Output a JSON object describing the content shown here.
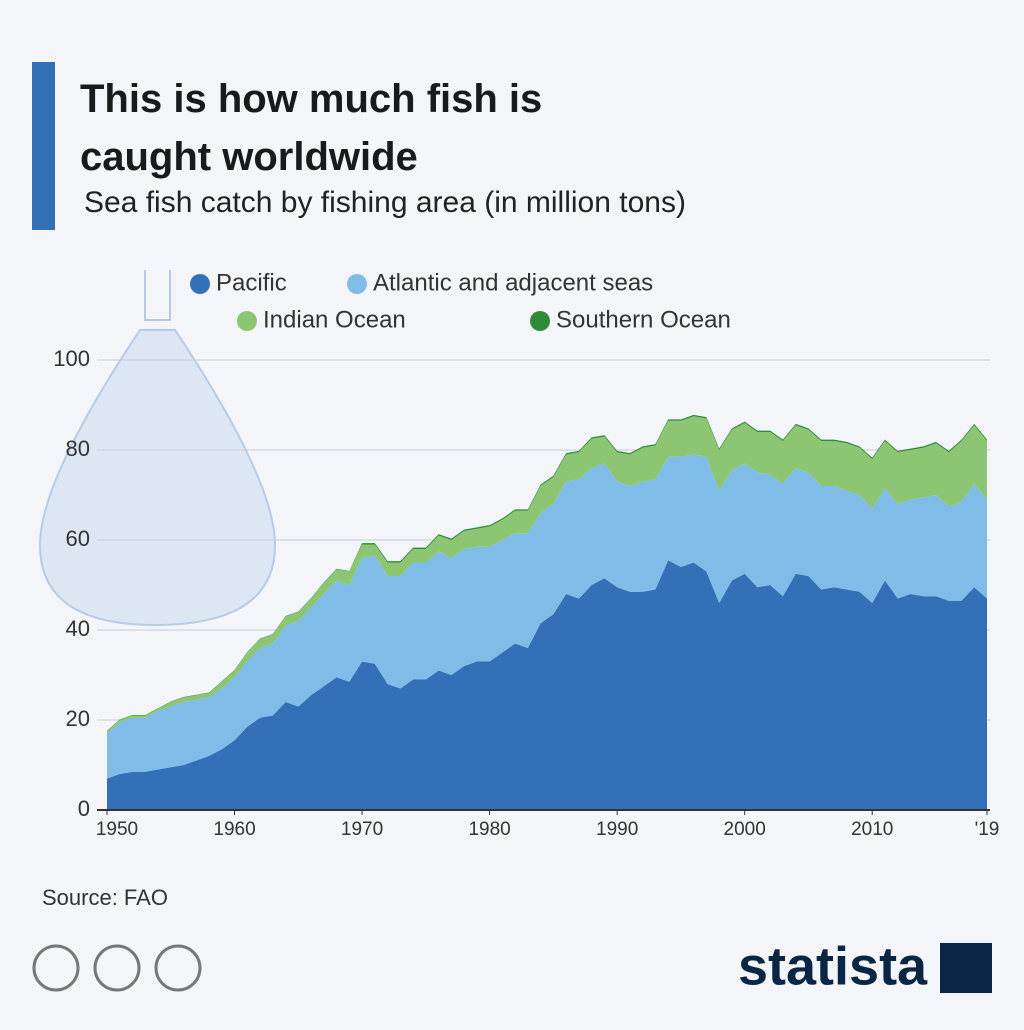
{
  "chart_data": {
    "type": "stacked_area",
    "title": "This is how much fish is caught worldwide",
    "subtitle": "Sea fish catch by fishing area (in million tons)",
    "source": "Source: FAO",
    "brand": "statista",
    "x": [
      1950,
      1951,
      1952,
      1953,
      1954,
      1955,
      1956,
      1957,
      1958,
      1959,
      1960,
      1961,
      1962,
      1963,
      1964,
      1965,
      1966,
      1967,
      1968,
      1969,
      1970,
      1971,
      1972,
      1973,
      1974,
      1975,
      1976,
      1977,
      1978,
      1979,
      1980,
      1981,
      1982,
      1983,
      1984,
      1985,
      1986,
      1987,
      1988,
      1989,
      1990,
      1991,
      1992,
      1993,
      1994,
      1995,
      1996,
      1997,
      1998,
      1999,
      2000,
      2001,
      2002,
      2003,
      2004,
      2005,
      2006,
      2007,
      2008,
      2009,
      2010,
      2011,
      2012,
      2013,
      2014,
      2015,
      2016,
      2017,
      2018,
      2019
    ],
    "series": [
      {
        "name": "Pacific",
        "color": "#3470b8",
        "values": [
          7,
          8,
          8.5,
          8.5,
          9,
          9.5,
          10,
          11,
          12,
          13.5,
          15.5,
          18.5,
          20.5,
          21,
          24,
          23,
          25.5,
          27.5,
          29.5,
          28.5,
          33,
          32.5,
          28,
          27,
          29,
          29,
          31,
          30,
          32,
          33,
          33,
          35,
          37,
          36,
          41.5,
          43.5,
          48,
          47,
          50,
          51.5,
          49.5,
          48.5,
          48.5,
          49,
          55.5,
          54,
          55,
          53,
          46,
          51,
          52.5,
          49.5,
          50,
          47.5,
          52.5,
          52,
          49,
          49.5,
          49,
          48.5,
          46,
          51,
          47,
          48,
          47.5,
          47.5,
          46.5,
          46.5,
          49.5,
          47
        ]
      },
      {
        "name": "Atlantic and adjacent seas",
        "color": "#80bce8",
        "values": [
          10,
          11.5,
          12,
          12,
          13,
          13.5,
          14,
          13.5,
          13,
          13.5,
          14,
          14.5,
          15.5,
          16,
          17,
          19,
          19.5,
          20.5,
          21.5,
          21.5,
          23,
          24,
          24,
          25,
          26,
          26,
          26.5,
          26,
          26,
          25.5,
          25.5,
          25,
          24.5,
          25.5,
          24.5,
          24.5,
          25,
          26.5,
          26,
          25.5,
          23.5,
          23.5,
          24.5,
          24.5,
          23,
          24.5,
          24,
          25.5,
          25,
          24.5,
          24.5,
          25.5,
          24.5,
          25,
          23.5,
          23,
          23,
          22.5,
          22,
          21.5,
          21,
          20.5,
          21,
          21,
          22,
          22.5,
          21,
          22,
          23,
          22
        ]
      },
      {
        "name": "Indian Ocean",
        "color": "#8cc672",
        "values": [
          0.5,
          0.5,
          0.5,
          0.5,
          0.5,
          1,
          1,
          1,
          1,
          1.5,
          1.5,
          2,
          2,
          2,
          2,
          2,
          2,
          2.5,
          2.5,
          3,
          3,
          2.5,
          3,
          3,
          3,
          3,
          3.5,
          4,
          4,
          4,
          4.5,
          4.5,
          5,
          5,
          6,
          6,
          6,
          6,
          6.5,
          6,
          6.5,
          7,
          7.5,
          7.5,
          8,
          8,
          8.5,
          8.5,
          9,
          9,
          9,
          9,
          9.5,
          9.5,
          9.5,
          9.5,
          10,
          10,
          10.5,
          10.5,
          11,
          10.5,
          11.5,
          11,
          11,
          11.5,
          12,
          13.5,
          13,
          13
        ]
      },
      {
        "name": "Southern Ocean",
        "color": "#2e8b3a",
        "values": [
          0.1,
          0.1,
          0.1,
          0.1,
          0.1,
          0.1,
          0.1,
          0.1,
          0.1,
          0.1,
          0.1,
          0.1,
          0.1,
          0.1,
          0.1,
          0.1,
          0.1,
          0.1,
          0.1,
          0.1,
          0.3,
          0.3,
          0.3,
          0.3,
          0.3,
          0.3,
          0.3,
          0.3,
          0.3,
          0.3,
          0.3,
          0.3,
          0.3,
          0.3,
          0.3,
          0.3,
          0.3,
          0.3,
          0.3,
          0.3,
          0.3,
          0.3,
          0.3,
          0.3,
          0.3,
          0.3,
          0.3,
          0.3,
          0.3,
          0.3,
          0.3,
          0.3,
          0.3,
          0.3,
          0.3,
          0.3,
          0.3,
          0.3,
          0.3,
          0.3,
          0.3,
          0.3,
          0.3,
          0.3,
          0.3,
          0.3,
          0.3,
          0.3,
          0.3,
          0.3
        ]
      }
    ],
    "xlim": [
      1950,
      2019
    ],
    "xticks": [
      1950,
      1960,
      1970,
      1980,
      1990,
      2000,
      2010,
      {
        "value": 2019,
        "label": "'19"
      }
    ],
    "ylim": [
      0,
      100
    ],
    "yticks": [
      0,
      20,
      40,
      60,
      80,
      100
    ],
    "grid": true
  }
}
